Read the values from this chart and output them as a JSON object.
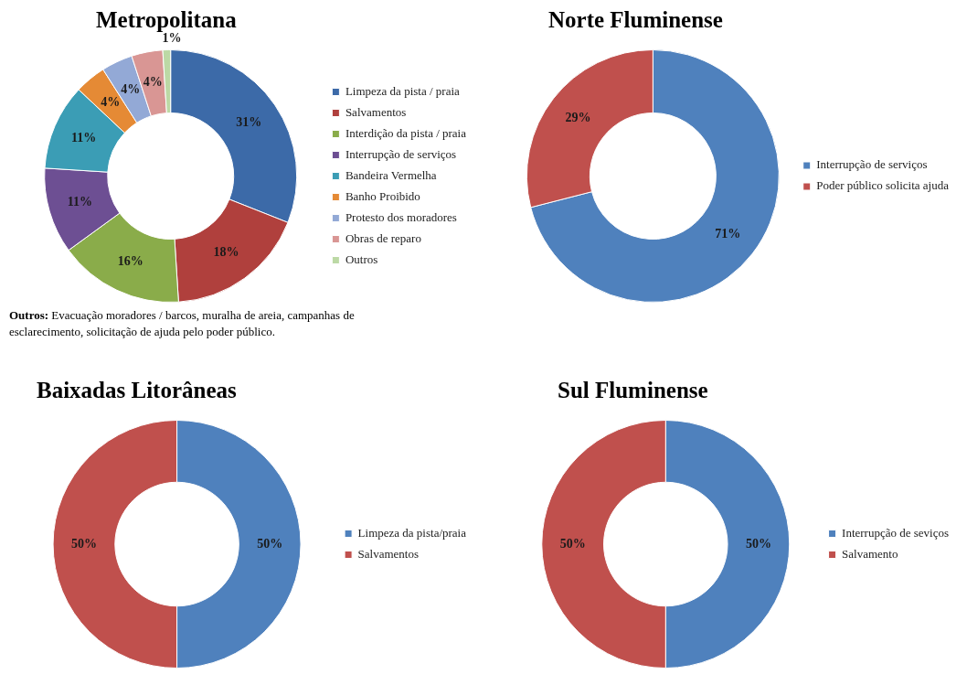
{
  "chart_data": [
    {
      "type": "donut",
      "title": "Metropolitana",
      "categories": [
        "Limpeza da pista / praia",
        "Salvamentos",
        "Interdição da pista / praia",
        "Interrupção de serviços",
        "Bandeira Vermelha",
        "Banho Proibido",
        "Protesto dos moradores",
        "Obras de reparo",
        "Outros"
      ],
      "values": [
        31,
        18,
        16,
        11,
        11,
        4,
        4,
        4,
        1
      ],
      "value_labels": [
        "31%",
        "18%",
        "16%",
        "11%",
        "11%",
        "4%",
        "4%",
        "4%",
        "1%"
      ],
      "colors": [
        "#3c6aa8",
        "#b0403d",
        "#8aac4a",
        "#6d4f93",
        "#3b9db5",
        "#e58a35",
        "#93a9d6",
        "#d99694",
        "#bcd9a5"
      ],
      "legend": "right",
      "annotations": [
        "Outros: Evacuação moradores / barcos, muralha de areia, campanhas de esclarecimento, solicitação de ajuda pelo poder público."
      ]
    },
    {
      "type": "donut",
      "title": "Norte Fluminense",
      "categories": [
        "Interrupção de serviços",
        "Poder público solicita ajuda"
      ],
      "values": [
        71,
        29
      ],
      "value_labels": [
        "71%",
        "29%"
      ],
      "colors": [
        "#4f81bd",
        "#c0504d"
      ],
      "legend": "right"
    },
    {
      "type": "donut",
      "title": "Baixadas Litorâneas",
      "categories": [
        "Limpeza da pista/praia",
        "Salvamentos"
      ],
      "values": [
        50,
        50
      ],
      "value_labels": [
        "50%",
        "50%"
      ],
      "colors": [
        "#4f81bd",
        "#c0504d"
      ],
      "legend": "right"
    },
    {
      "type": "donut",
      "title": "Sul Fluminense",
      "categories": [
        "Interrupção de seviços",
        "Salvamento"
      ],
      "values": [
        50,
        50
      ],
      "value_labels": [
        "50%",
        "50%"
      ],
      "colors": [
        "#4f81bd",
        "#c0504d"
      ],
      "legend": "right"
    }
  ]
}
